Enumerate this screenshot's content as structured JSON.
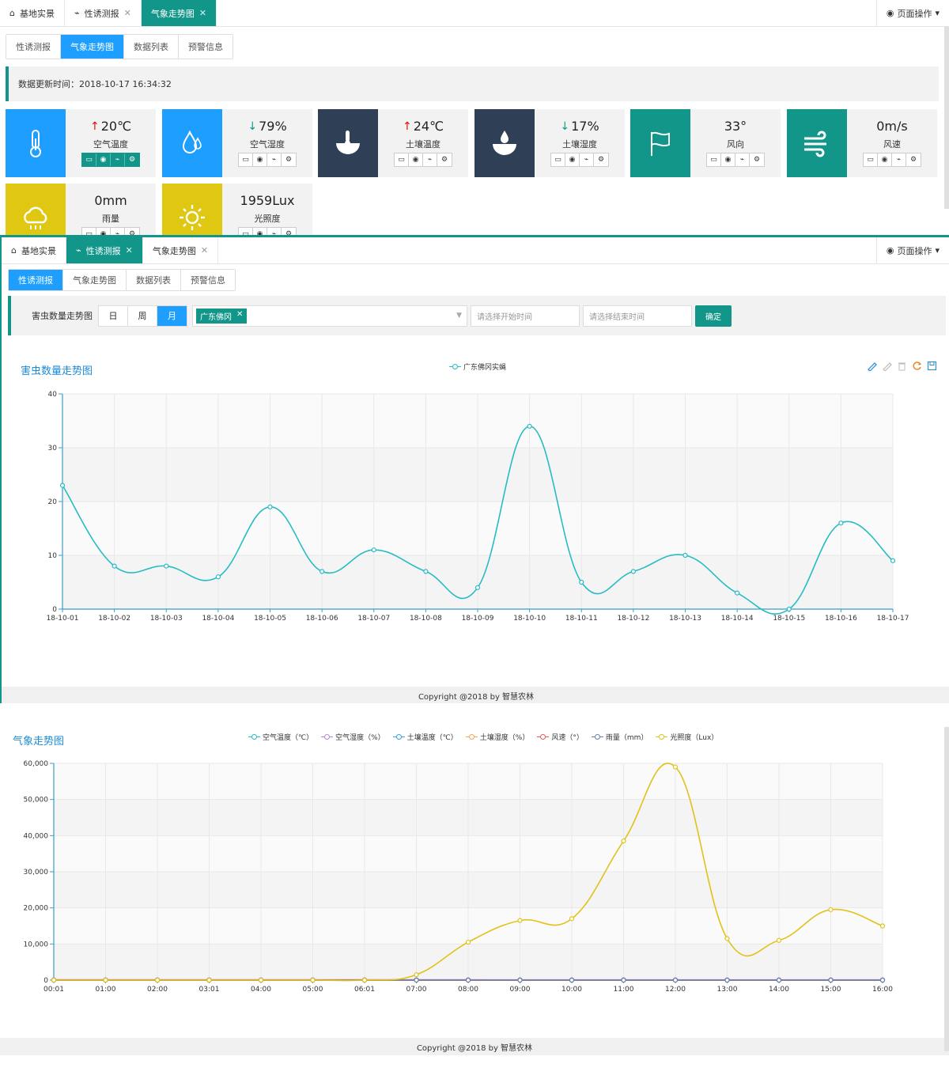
{
  "colors": {
    "teal": "#13968a",
    "blue": "#1e9fff",
    "navy": "#2f3f56",
    "yellow": "#e0c812",
    "chart_line": "#26bcc4",
    "light_line": "#e0c21a",
    "up_arrow": "#e3090c"
  },
  "panel1": {
    "tabs": [
      {
        "label": "基地实景",
        "icon": "home-icon"
      },
      {
        "label": "性诱测报",
        "icon": "pulse-icon"
      },
      {
        "label": "气象走势图",
        "icon": ""
      }
    ],
    "page_ops": "页面操作",
    "subtabs": [
      "性诱测报",
      "气象走势图",
      "数据列表",
      "预警信息"
    ],
    "update_text": "数据更新时间：2018-10-17 16:34:32",
    "cards": [
      {
        "value": "20℃",
        "trend": "↑",
        "label": "空气温度",
        "icon": "thermometer-icon"
      },
      {
        "value": "79%",
        "trend": "↓",
        "label": "空气湿度",
        "icon": "droplet-icon"
      },
      {
        "value": "24℃",
        "trend": "↑",
        "label": "土壤温度",
        "icon": "soil-temperature-icon"
      },
      {
        "value": "17%",
        "trend": "↓",
        "label": "土壤湿度",
        "icon": "soil-moisture-icon"
      },
      {
        "value": "33°",
        "trend": "",
        "label": "风向",
        "icon": "flag-icon"
      },
      {
        "value": "0m/s",
        "trend": "",
        "label": "风速",
        "icon": "wind-icon"
      },
      {
        "value": "0mm",
        "trend": "",
        "label": "雨量",
        "icon": "rain-cloud-icon"
      },
      {
        "value": "1959Lux",
        "trend": "",
        "label": "光照度",
        "icon": "sun-icon"
      }
    ]
  },
  "panel2": {
    "tabs": [
      {
        "label": "基地实景",
        "icon": "home-icon"
      },
      {
        "label": "性诱测报",
        "icon": "pulse-icon"
      },
      {
        "label": "气象走势图",
        "icon": ""
      }
    ],
    "page_ops": "页面操作",
    "subtabs": [
      "性诱测报",
      "气象走势图",
      "数据列表",
      "预警信息"
    ],
    "filter": {
      "label": "害虫数量走势图",
      "ranges": [
        "日",
        "周",
        "月"
      ],
      "selected_tag": "广东佛冈",
      "start_placeholder": "请选择开始时间",
      "end_placeholder": "请选择结束时间",
      "confirm": "确定"
    },
    "footer": "Copyright @2018 by 智慧农林"
  },
  "panel3": {
    "footer": "Copyright @2018 by 智慧农林"
  },
  "chart_data": [
    {
      "type": "line",
      "title": "害虫数量走势图",
      "series": [
        {
          "name": "广东佛冈实蝇",
          "color": "#26bcc4",
          "values": [
            23,
            8,
            8,
            6,
            19,
            7,
            11,
            7,
            4,
            34,
            5,
            7,
            10,
            3,
            0,
            16,
            9
          ]
        }
      ],
      "categories": [
        "18-10-01",
        "18-10-02",
        "18-10-03",
        "18-10-04",
        "18-10-05",
        "18-10-06",
        "18-10-07",
        "18-10-08",
        "18-10-09",
        "18-10-10",
        "18-10-11",
        "18-10-12",
        "18-10-13",
        "18-10-14",
        "18-10-15",
        "18-10-16",
        "18-10-17"
      ],
      "yticks": [
        "0",
        "10",
        "20",
        "30",
        "40"
      ],
      "ylim": [
        0,
        40
      ],
      "grid": true,
      "legend": "top-center"
    },
    {
      "type": "line",
      "title": "气象走势图",
      "categories": [
        "00:01",
        "01:00",
        "02:00",
        "03:01",
        "04:00",
        "05:00",
        "06:01",
        "07:00",
        "08:00",
        "09:00",
        "10:00",
        "11:00",
        "12:00",
        "13:00",
        "14:00",
        "15:00",
        "16:00"
      ],
      "yticks": [
        "0",
        "10,000",
        "20,000",
        "30,000",
        "40,000",
        "50,000",
        "60,000"
      ],
      "ylim": [
        0,
        60000
      ],
      "grid": true,
      "legend": "top-center",
      "series": [
        {
          "name": "空气温度（℃）",
          "color": "#26bcc4",
          "values": [
            20,
            20,
            19,
            19,
            19,
            18,
            18,
            18,
            19,
            20,
            21,
            22,
            23,
            23,
            22,
            21,
            20
          ]
        },
        {
          "name": "空气湿度（%）",
          "color": "#b08ad6",
          "values": [
            85,
            86,
            87,
            88,
            88,
            89,
            89,
            88,
            85,
            82,
            79,
            76,
            74,
            73,
            75,
            77,
            79
          ]
        },
        {
          "name": "土壤温度（℃）",
          "color": "#3d9ee0",
          "values": [
            23,
            23,
            22,
            22,
            22,
            22,
            22,
            22,
            22,
            23,
            23,
            24,
            24,
            25,
            25,
            24,
            24
          ]
        },
        {
          "name": "土壤湿度（%）",
          "color": "#f0a55c",
          "values": [
            17,
            17,
            17,
            17,
            17,
            17,
            17,
            17,
            17,
            17,
            17,
            17,
            17,
            17,
            17,
            17,
            17
          ]
        },
        {
          "name": "风速（°）",
          "color": "#e05c5c",
          "values": [
            0,
            0,
            0,
            0,
            0,
            0,
            0,
            0,
            0,
            0,
            0,
            0,
            0,
            0,
            0,
            0,
            0
          ]
        },
        {
          "name": "雨量（mm）",
          "color": "#6a7fa6",
          "values": [
            0,
            0,
            0,
            0,
            0,
            0,
            0,
            0,
            0,
            0,
            0,
            0,
            0,
            0,
            0,
            0,
            0
          ]
        },
        {
          "name": "光照度（Lux）",
          "color": "#e0c21a",
          "values": [
            0,
            0,
            0,
            0,
            0,
            0,
            0,
            1500,
            10500,
            16500,
            17000,
            38500,
            59000,
            11500,
            11000,
            19500,
            15000
          ]
        }
      ]
    }
  ]
}
